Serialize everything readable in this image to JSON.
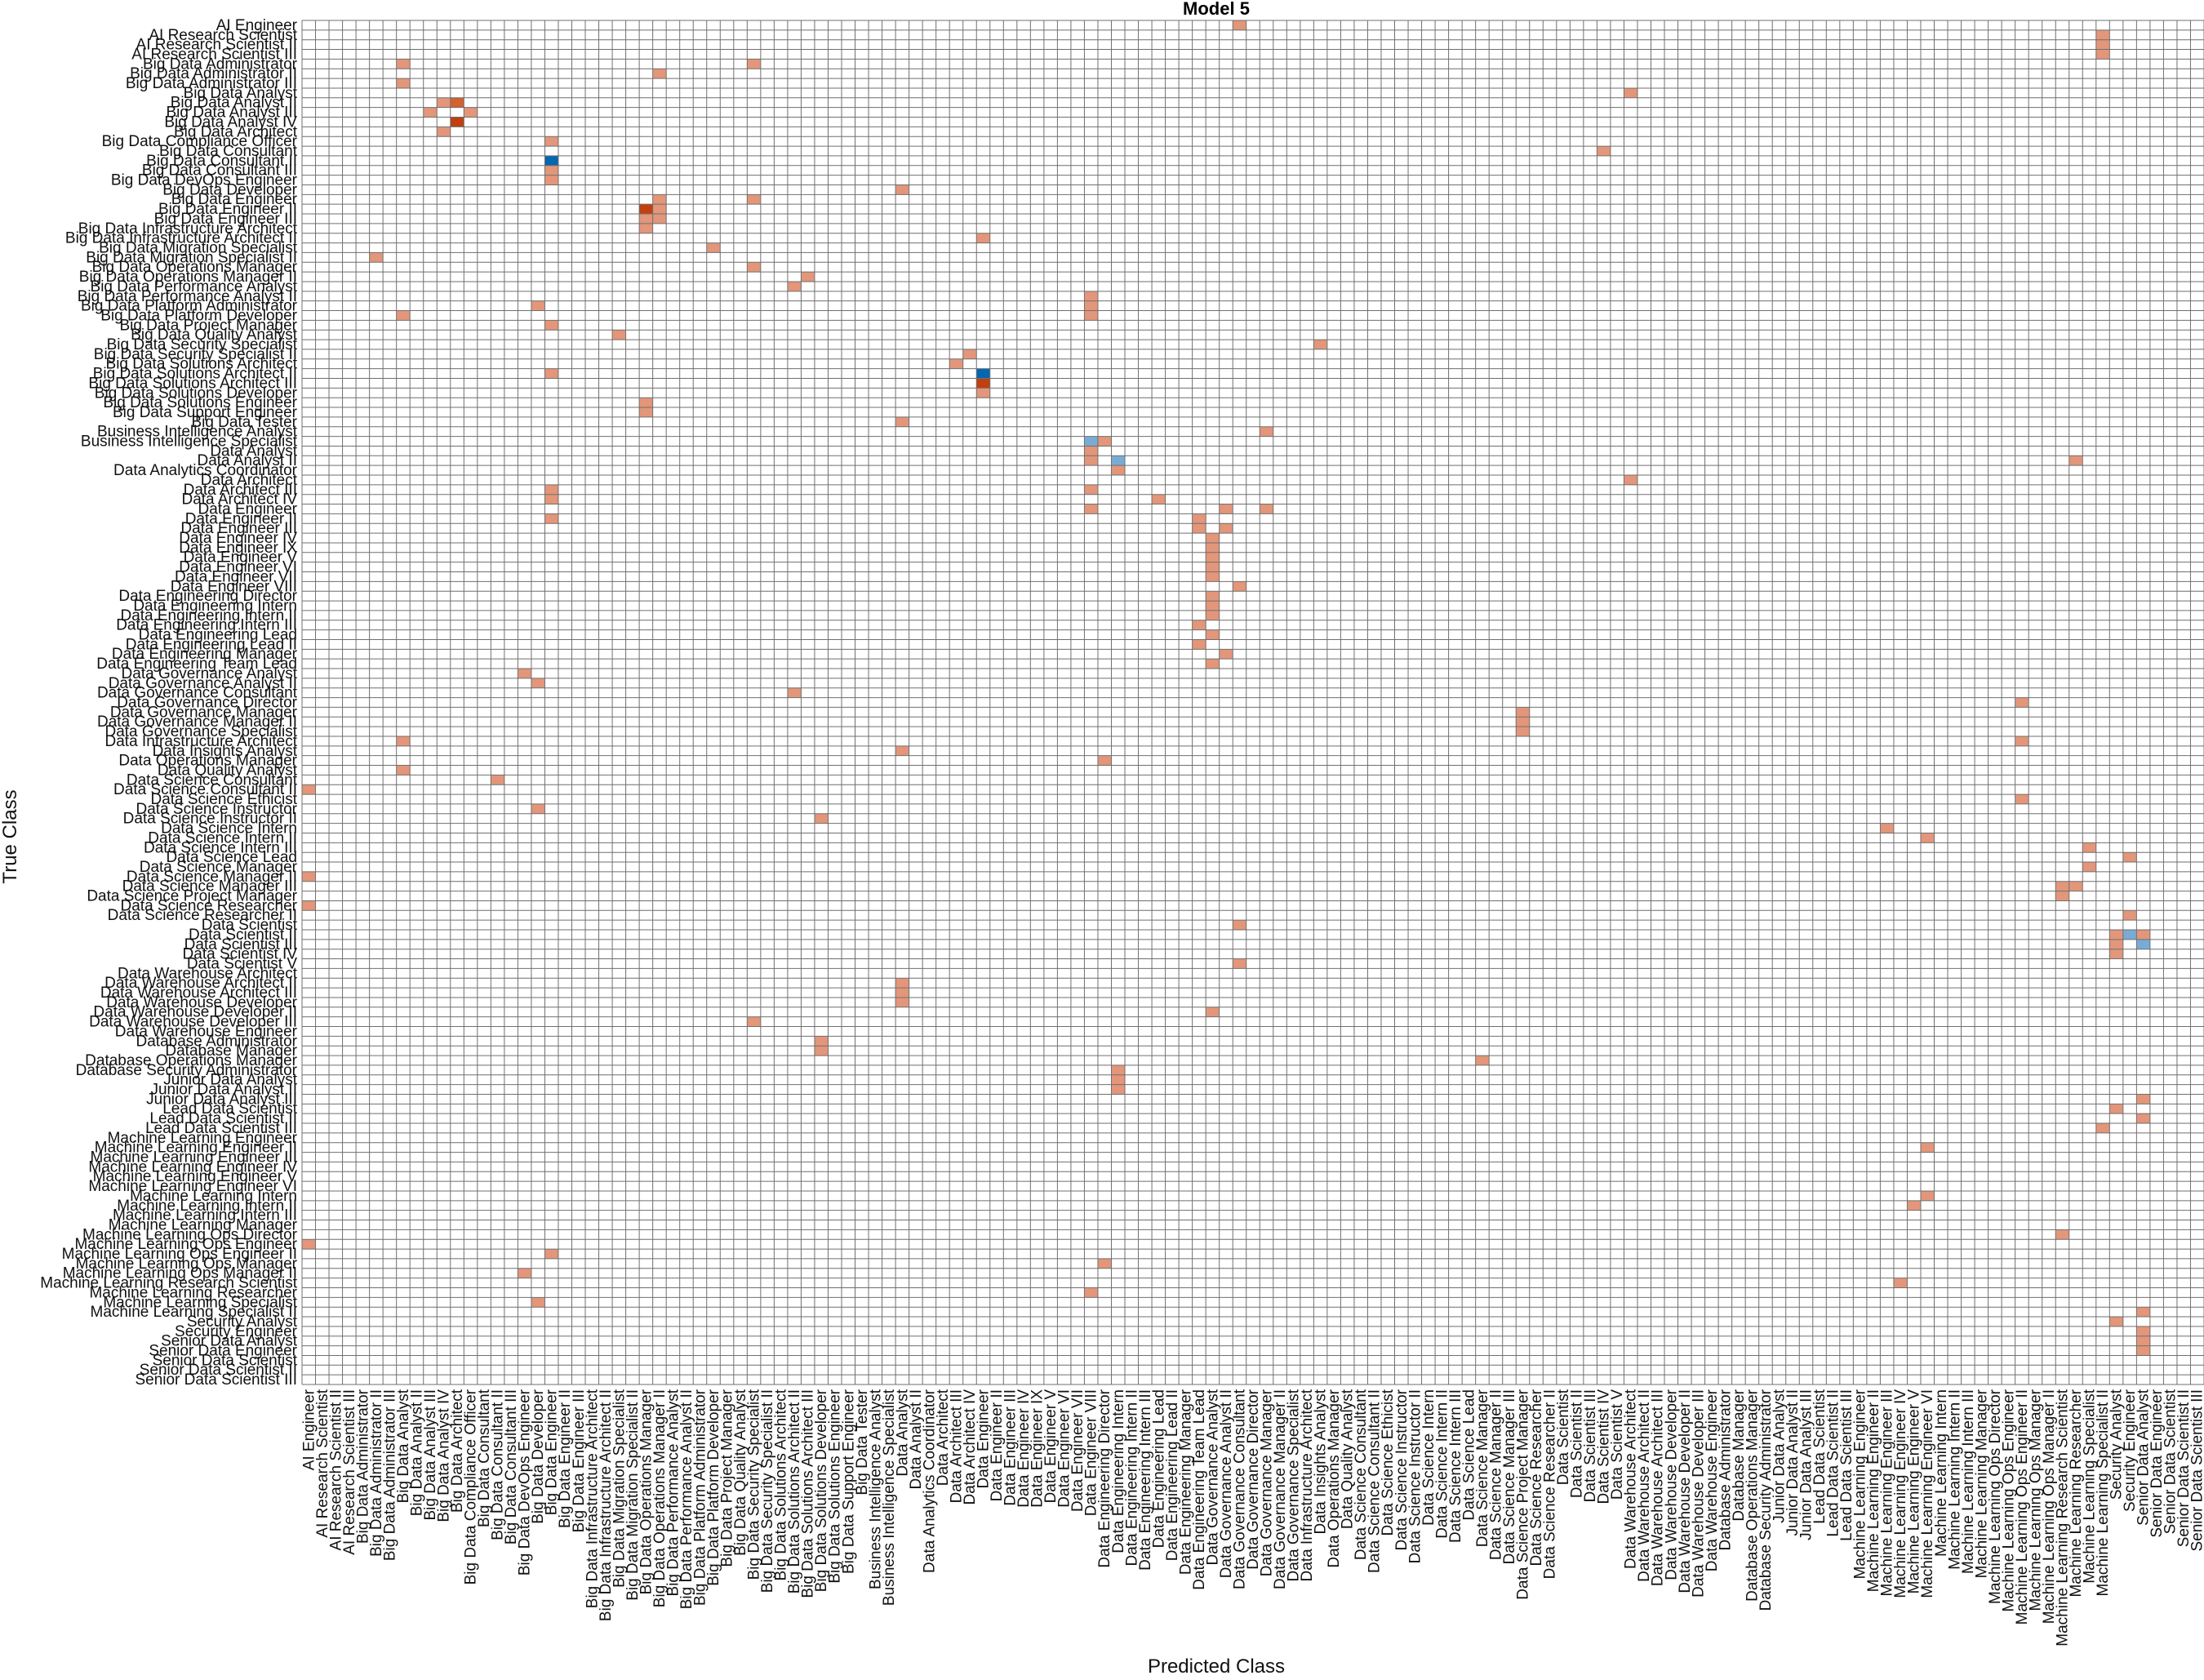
{
  "chart_data": {
    "type": "heatmap",
    "title": "Model 5",
    "xlabel": "Predicted Class",
    "ylabel": "True Class",
    "grid": true,
    "colors": {
      "low": "#e3967a",
      "mid": "#d2622f",
      "high": "#c0400f",
      "blue": "#0567b2",
      "lightblue": "#79acd5",
      "grid": "#6f6f6f"
    },
    "rows": [
      "AI Engineer",
      "AI Research Scientist",
      "AI Research Scientist II",
      "AI Research Scientist III",
      "Big Data Administrator",
      "Big Data Administrator II",
      "Big Data Administrator III",
      "Big Data Analyst",
      "Big Data Analyst II",
      "Big Data Analyst III",
      "Big Data Analyst IV",
      "Big Data Architect",
      "Big Data Compliance Officer",
      "Big Data Consultant",
      "Big Data Consultant II",
      "Big Data Consultant III",
      "Big Data DevOps Engineer",
      "Big Data Developer",
      "Big Data Engineer",
      "Big Data Engineer II",
      "Big Data Engineer III",
      "Big Data Infrastructure Architect",
      "Big Data Infrastructure Architect II",
      "Big Data Migration Specialist",
      "Big Data Migration Specialist II",
      "Big Data Operations Manager",
      "Big Data Operations Manager II",
      "Big Data Performance Analyst",
      "Big Data Performance Analyst II",
      "Big Data Platform Administrator",
      "Big Data Platform Developer",
      "Big Data Project Manager",
      "Big Data Quality Analyst",
      "Big Data Security Specialist",
      "Big Data Security Specialist II",
      "Big Data Solutions Architect",
      "Big Data Solutions Architect II",
      "Big Data Solutions Architect III",
      "Big Data Solutions Developer",
      "Big Data Solutions Engineer",
      "Big Data Support Engineer",
      "Big Data Tester",
      "Business Intelligence Analyst",
      "Business Intelligence Specialist",
      "Data Analyst",
      "Data Analyst II",
      "Data Analytics Coordinator",
      "Data Architect",
      "Data Architect III",
      "Data Architect IV",
      "Data Engineer",
      "Data Engineer II",
      "Data Engineer III",
      "Data Engineer IV",
      "Data Engineer IX",
      "Data Engineer V",
      "Data Engineer VI",
      "Data Engineer VII",
      "Data Engineer VIII",
      "Data Engineering Director",
      "Data Engineering Intern",
      "Data Engineering Intern II",
      "Data Engineering Intern III",
      "Data Engineering Lead",
      "Data Engineering Lead II",
      "Data Engineering Manager",
      "Data Engineering Team Lead",
      "Data Governance Analyst",
      "Data Governance Analyst II",
      "Data Governance Consultant",
      "Data Governance Director",
      "Data Governance Manager",
      "Data Governance Manager II",
      "Data Governance Specialist",
      "Data Infrastructure Architect",
      "Data Insights Analyst",
      "Data Operations Manager",
      "Data Quality Analyst",
      "Data Science Consultant",
      "Data Science Consultant II",
      "Data Science Ethicist",
      "Data Science Instructor",
      "Data Science Instructor II",
      "Data Science Intern",
      "Data Science Intern II",
      "Data Science Intern III",
      "Data Science Lead",
      "Data Science Manager",
      "Data Science Manager II",
      "Data Science Manager III",
      "Data Science Project Manager",
      "Data Science Researcher",
      "Data Science Researcher II",
      "Data Scientist",
      "Data Scientist II",
      "Data Scientist III",
      "Data Scientist IV",
      "Data Scientist V",
      "Data Warehouse Architect",
      "Data Warehouse Architect II",
      "Data Warehouse Architect III",
      "Data Warehouse Developer",
      "Data Warehouse Developer II",
      "Data Warehouse Developer III",
      "Data Warehouse Engineer",
      "Database Administrator",
      "Database Manager",
      "Database Operations Manager",
      "Database Security Administrator",
      "Junior Data Analyst",
      "Junior Data Analyst II",
      "Junior Data Analyst III",
      "Lead Data Scientist",
      "Lead Data Scientist II",
      "Lead Data Scientist III",
      "Machine Learning Engineer",
      "Machine Learning Engineer II",
      "Machine Learning Engineer III",
      "Machine Learning Engineer IV",
      "Machine Learning Engineer V",
      "Machine Learning Engineer VI",
      "Machine Learning Intern",
      "Machine Learning Intern II",
      "Machine Learning Intern III",
      "Machine Learning Manager",
      "Machine Learning Ops Director",
      "Machine Learning Ops Engineer",
      "Machine Learning Ops Engineer II",
      "Machine Learning Ops Manager",
      "Machine Learning Ops Manager II",
      "Machine Learning Research Scientist",
      "Machine Learning Researcher",
      "Machine Learning Specialist",
      "Machine Learning Specialist II",
      "Security Analyst",
      "Security Engineer",
      "Senior Data Analyst",
      "Senior Data Engineer",
      "Senior Data Scientist",
      "Senior Data Scientist II",
      "Senior Data Scientist III"
    ],
    "columns": [
      "AI Engineer",
      "AI Research Scientist",
      "AI Research Scientist II",
      "AI Research Scientist III",
      "Big Data Administrator",
      "Big Data Administrator II",
      "Big Data Administrator III",
      "Big Data Analyst",
      "Big Data Analyst II",
      "Big Data Analyst III",
      "Big Data Analyst IV",
      "Big Data Architect",
      "Big Data Compliance Officer",
      "Big Data Consultant",
      "Big Data Consultant II",
      "Big Data Consultant III",
      "Big Data DevOps Engineer",
      "Big Data Developer",
      "Big Data Engineer",
      "Big Data Engineer II",
      "Big Data Engineer III",
      "Big Data Infrastructure Architect",
      "Big Data Infrastructure Architect II",
      "Big Data Migration Specialist",
      "Big Data Migration Specialist II",
      "Big Data Operations Manager",
      "Big Data Operations Manager II",
      "Big Data Performance Analyst",
      "Big Data Performance Analyst II",
      "Big Data Platform Administrator",
      "Big Data Platform Developer",
      "Big Data Project Manager",
      "Big Data Quality Analyst",
      "Big Data Security Specialist",
      "Big Data Security Specialist II",
      "Big Data Solutions Architect",
      "Big Data Solutions Architect II",
      "Big Data Solutions Architect III",
      "Big Data Solutions Developer",
      "Big Data Solutions Engineer",
      "Big Data Support Engineer",
      "Big Data Tester",
      "Business Intelligence Analyst",
      "Business Intelligence Specialist",
      "Data Analyst",
      "Data Analyst II",
      "Data Analytics Coordinator",
      "Data Architect",
      "Data Architect III",
      "Data Architect IV",
      "Data Engineer",
      "Data Engineer II",
      "Data Engineer III",
      "Data Engineer IV",
      "Data Engineer IX",
      "Data Engineer V",
      "Data Engineer VI",
      "Data Engineer VII",
      "Data Engineer VIII",
      "Data Engineering Director",
      "Data Engineering Intern",
      "Data Engineering Intern II",
      "Data Engineering Intern III",
      "Data Engineering Lead",
      "Data Engineering Lead II",
      "Data Engineering Manager",
      "Data Engineering Team Lead",
      "Data Governance Analyst",
      "Data Governance Analyst II",
      "Data Governance Consultant",
      "Data Governance Director",
      "Data Governance Manager",
      "Data Governance Manager II",
      "Data Governance Specialist",
      "Data Infrastructure Architect",
      "Data Insights Analyst",
      "Data Operations Manager",
      "Data Quality Analyst",
      "Data Science Consultant",
      "Data Science Consultant II",
      "Data Science Ethicist",
      "Data Science Instructor",
      "Data Science Instructor II",
      "Data Science Intern",
      "Data Science Intern II",
      "Data Science Intern III",
      "Data Science Lead",
      "Data Science Manager",
      "Data Science Manager II",
      "Data Science Manager III",
      "Data Science Project Manager",
      "Data Science Researcher",
      "Data Science Researcher II",
      "Data Scientist",
      "Data Scientist II",
      "Data Scientist III",
      "Data Scientist IV",
      "Data Scientist V",
      "Data Warehouse Architect",
      "Data Warehouse Architect II",
      "Data Warehouse Architect III",
      "Data Warehouse Developer",
      "Data Warehouse Developer II",
      "Data Warehouse Developer III",
      "Data Warehouse Engineer",
      "Database Administrator",
      "Database Manager",
      "Database Operations Manager",
      "Database Security Administrator",
      "Junior Data Analyst",
      "Junior Data Analyst II",
      "Junior Data Analyst III",
      "Lead Data Scientist",
      "Lead Data Scientist II",
      "Lead Data Scientist III",
      "Machine Learning Engineer",
      "Machine Learning Engineer II",
      "Machine Learning Engineer III",
      "Machine Learning Engineer IV",
      "Machine Learning Engineer V",
      "Machine Learning Engineer VI",
      "Machine Learning Intern",
      "Machine Learning Intern II",
      "Machine Learning Intern III",
      "Machine Learning Manager",
      "Machine Learning Ops Director",
      "Machine Learning Ops Engineer",
      "Machine Learning Ops Engineer II",
      "Machine Learning Ops Manager",
      "Machine Learning Ops Manager II",
      "Machine Learning Research Scientist",
      "Machine Learning Researcher",
      "Machine Learning Specialist",
      "Machine Learning Specialist II",
      "Security Analyst",
      "Security Engineer",
      "Senior Data Analyst",
      "Senior Data Engineer",
      "Senior Data Scientist",
      "Senior Data Scientist II",
      "Senior Data Scientist III"
    ],
    "cells": [
      [
        0,
        69,
        "low"
      ],
      [
        1,
        133,
        "low"
      ],
      [
        2,
        133,
        "low"
      ],
      [
        2,
        165,
        "low"
      ],
      [
        3,
        133,
        "low"
      ],
      [
        4,
        7,
        "low"
      ],
      [
        4,
        33,
        "low"
      ],
      [
        5,
        26,
        "low"
      ],
      [
        6,
        7,
        "low"
      ],
      [
        7,
        98,
        "low"
      ],
      [
        8,
        10,
        "low"
      ],
      [
        8,
        11,
        "mid"
      ],
      [
        9,
        9,
        "low"
      ],
      [
        9,
        12,
        "low"
      ],
      [
        10,
        11,
        "high"
      ],
      [
        11,
        10,
        "low"
      ],
      [
        12,
        18,
        "low"
      ],
      [
        13,
        96,
        "low"
      ],
      [
        14,
        18,
        "blue"
      ],
      [
        15,
        18,
        "low"
      ],
      [
        16,
        18,
        "low"
      ],
      [
        17,
        44,
        "low"
      ],
      [
        18,
        26,
        "low"
      ],
      [
        18,
        33,
        "low"
      ],
      [
        19,
        25,
        "high"
      ],
      [
        19,
        26,
        "low"
      ],
      [
        20,
        25,
        "low"
      ],
      [
        20,
        26,
        "low"
      ],
      [
        21,
        25,
        "low"
      ],
      [
        22,
        50,
        "low"
      ],
      [
        23,
        30,
        "low"
      ],
      [
        24,
        5,
        "low"
      ],
      [
        25,
        33,
        "low"
      ],
      [
        26,
        37,
        "low"
      ],
      [
        27,
        36,
        "low"
      ],
      [
        28,
        58,
        "low"
      ],
      [
        29,
        17,
        "low"
      ],
      [
        29,
        58,
        "low"
      ],
      [
        30,
        7,
        "low"
      ],
      [
        30,
        58,
        "low"
      ],
      [
        31,
        18,
        "low"
      ],
      [
        32,
        23,
        "low"
      ],
      [
        33,
        75,
        "low"
      ],
      [
        34,
        49,
        "low"
      ],
      [
        35,
        48,
        "low"
      ],
      [
        36,
        18,
        "low"
      ],
      [
        36,
        50,
        "blue"
      ],
      [
        37,
        50,
        "high"
      ],
      [
        38,
        50,
        "low"
      ],
      [
        39,
        25,
        "low"
      ],
      [
        40,
        25,
        "low"
      ],
      [
        41,
        44,
        "low"
      ],
      [
        42,
        71,
        "low"
      ],
      [
        43,
        58,
        "lightblue"
      ],
      [
        43,
        59,
        "low"
      ],
      [
        44,
        58,
        "low"
      ],
      [
        45,
        58,
        "low"
      ],
      [
        45,
        60,
        "lightblue"
      ],
      [
        45,
        131,
        "low"
      ],
      [
        46,
        60,
        "low"
      ],
      [
        47,
        98,
        "low"
      ],
      [
        48,
        18,
        "low"
      ],
      [
        48,
        58,
        "low"
      ],
      [
        49,
        18,
        "low"
      ],
      [
        49,
        63,
        "low"
      ],
      [
        50,
        58,
        "low"
      ],
      [
        50,
        68,
        "low"
      ],
      [
        50,
        71,
        "low"
      ],
      [
        51,
        18,
        "low"
      ],
      [
        51,
        66,
        "low"
      ],
      [
        52,
        66,
        "low"
      ],
      [
        52,
        68,
        "low"
      ],
      [
        53,
        67,
        "low"
      ],
      [
        54,
        67,
        "low"
      ],
      [
        55,
        67,
        "low"
      ],
      [
        56,
        67,
        "low"
      ],
      [
        57,
        67,
        "low"
      ],
      [
        58,
        69,
        "low"
      ],
      [
        59,
        67,
        "low"
      ],
      [
        60,
        67,
        "low"
      ],
      [
        61,
        67,
        "low"
      ],
      [
        62,
        66,
        "low"
      ],
      [
        63,
        67,
        "low"
      ],
      [
        64,
        66,
        "low"
      ],
      [
        65,
        68,
        "low"
      ],
      [
        66,
        67,
        "low"
      ],
      [
        67,
        16,
        "low"
      ],
      [
        68,
        17,
        "low"
      ],
      [
        69,
        36,
        "low"
      ],
      [
        70,
        127,
        "low"
      ],
      [
        71,
        90,
        "low"
      ],
      [
        72,
        90,
        "low"
      ],
      [
        73,
        90,
        "low"
      ],
      [
        74,
        7,
        "low"
      ],
      [
        74,
        127,
        "low"
      ],
      [
        75,
        44,
        "low"
      ],
      [
        76,
        59,
        "low"
      ],
      [
        77,
        7,
        "low"
      ],
      [
        78,
        14,
        "low"
      ],
      [
        79,
        0,
        "low"
      ],
      [
        80,
        127,
        "low"
      ],
      [
        81,
        17,
        "low"
      ],
      [
        82,
        38,
        "low"
      ],
      [
        83,
        117,
        "low"
      ],
      [
        84,
        120,
        "low"
      ],
      [
        85,
        132,
        "low"
      ],
      [
        86,
        135,
        "low"
      ],
      [
        87,
        132,
        "low"
      ],
      [
        88,
        0,
        "low"
      ],
      [
        89,
        130,
        "low"
      ],
      [
        89,
        131,
        "low"
      ],
      [
        90,
        130,
        "low"
      ],
      [
        91,
        0,
        "low"
      ],
      [
        92,
        135,
        "low"
      ],
      [
        93,
        69,
        "low"
      ],
      [
        93,
        165,
        "low"
      ],
      [
        94,
        134,
        "low"
      ],
      [
        94,
        135,
        "lightblue"
      ],
      [
        94,
        136,
        "low"
      ],
      [
        95,
        134,
        "low"
      ],
      [
        95,
        136,
        "lightblue"
      ],
      [
        95,
        160,
        "low"
      ],
      [
        96,
        134,
        "low"
      ],
      [
        97,
        69,
        "low"
      ],
      [
        98,
        150,
        "low"
      ],
      [
        99,
        44,
        "low"
      ],
      [
        100,
        44,
        "low"
      ],
      [
        101,
        44,
        "low"
      ],
      [
        102,
        67,
        "low"
      ],
      [
        103,
        33,
        "low"
      ],
      [
        104,
        171,
        "low"
      ],
      [
        105,
        38,
        "low"
      ],
      [
        106,
        38,
        "low"
      ],
      [
        107,
        87,
        "low"
      ],
      [
        108,
        60,
        "low"
      ],
      [
        109,
        60,
        "low"
      ],
      [
        110,
        60,
        "low"
      ],
      [
        111,
        136,
        "low"
      ],
      [
        112,
        134,
        "low"
      ],
      [
        113,
        136,
        "low"
      ],
      [
        114,
        133,
        "low"
      ],
      [
        114,
        171,
        "low"
      ],
      [
        115,
        157,
        "low"
      ],
      [
        115,
        171,
        "low"
      ],
      [
        116,
        120,
        "low"
      ],
      [
        117,
        159,
        "low"
      ],
      [
        118,
        171,
        "low"
      ],
      [
        119,
        161,
        "low"
      ],
      [
        120,
        158,
        "low"
      ],
      [
        121,
        120,
        "low"
      ],
      [
        122,
        119,
        "low"
      ],
      [
        123,
        159,
        "low"
      ],
      [
        124,
        157,
        "low"
      ],
      [
        124,
        158,
        "low"
      ],
      [
        125,
        130,
        "low"
      ],
      [
        126,
        0,
        "low"
      ],
      [
        127,
        18,
        "low"
      ],
      [
        128,
        59,
        "low"
      ],
      [
        129,
        16,
        "low"
      ],
      [
        130,
        118,
        "low"
      ],
      [
        131,
        58,
        "low"
      ],
      [
        132,
        17,
        "low"
      ],
      [
        133,
        136,
        "low"
      ],
      [
        134,
        134,
        "low"
      ],
      [
        135,
        136,
        "low"
      ],
      [
        136,
        136,
        "low"
      ],
      [
        137,
        136,
        "low"
      ]
    ]
  }
}
